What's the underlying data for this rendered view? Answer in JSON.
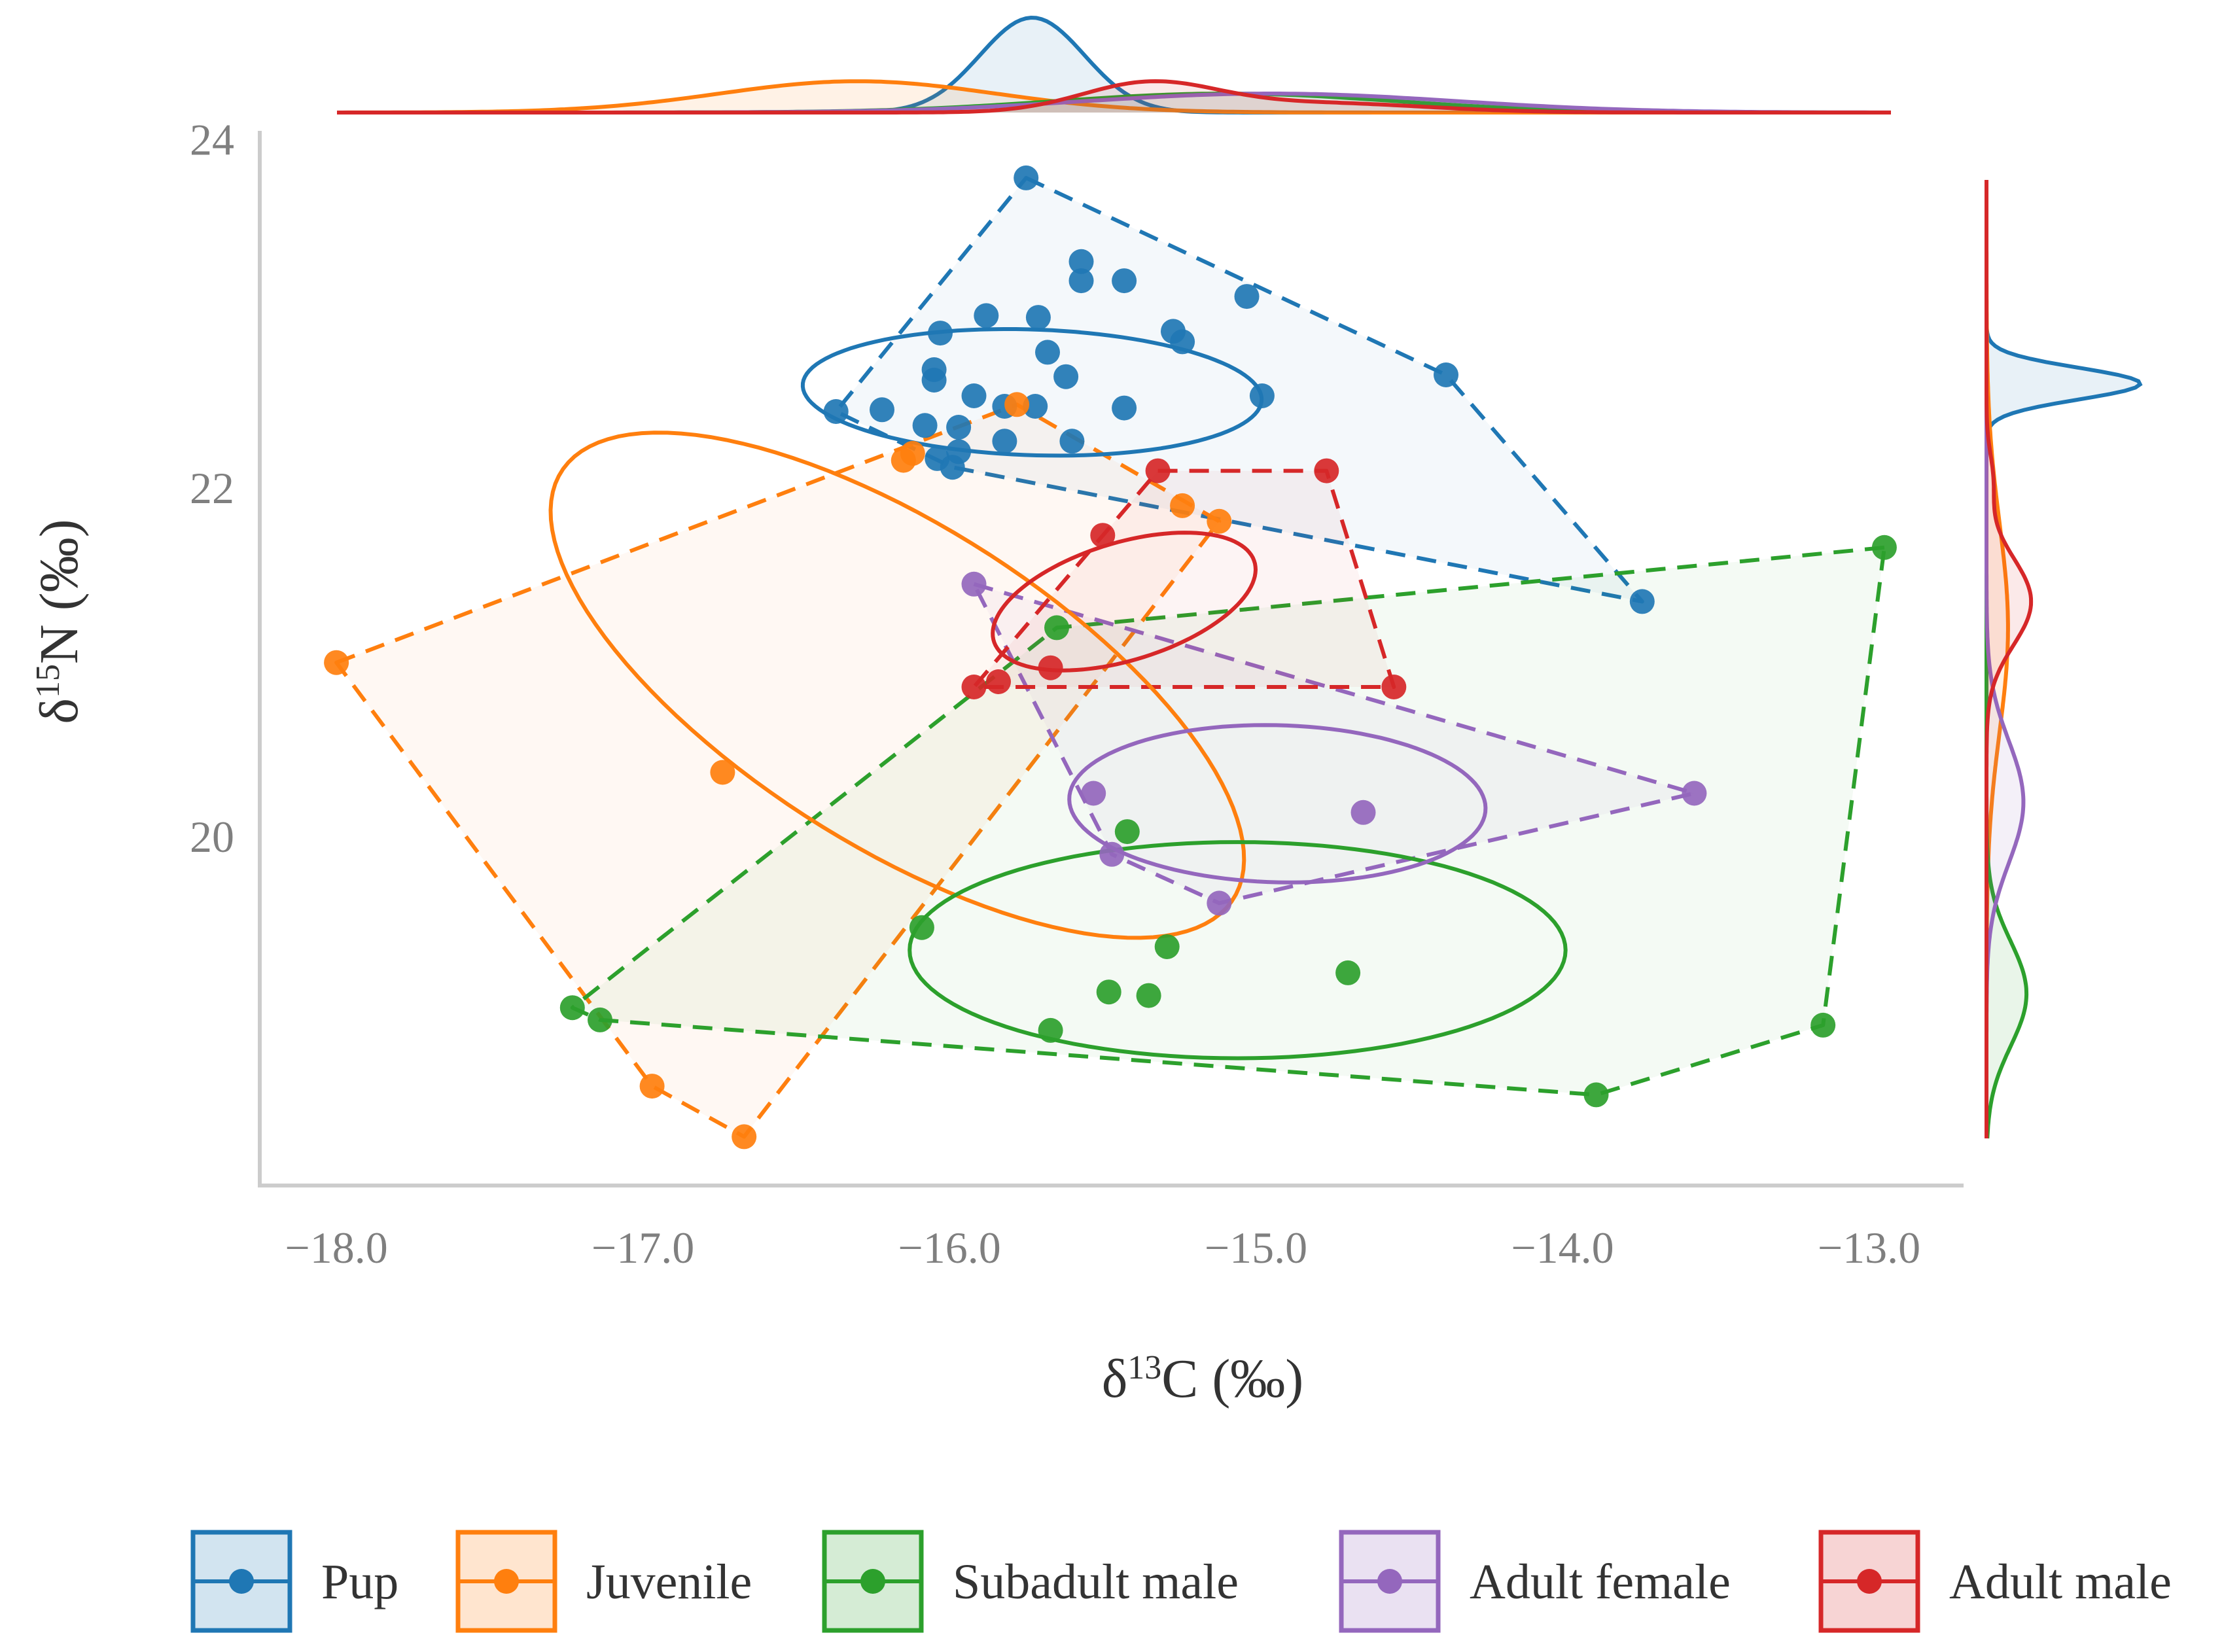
{
  "chart_data": {
    "type": "scatter",
    "title": "",
    "xlabel": {
      "main": "δ",
      "sup": "13",
      "rest": "C (‰)"
    },
    "ylabel": {
      "main": "δ",
      "sup": "15",
      "rest": "N (‰)"
    },
    "xlim": [
      -18.25,
      -12.7
    ],
    "ylim": [
      18.0,
      24.05
    ],
    "xticks": [
      -18.0,
      -17.0,
      -16.0,
      -15.0,
      -14.0,
      -13.0
    ],
    "xtick_labels": [
      "−18.0",
      "−17.0",
      "−16.0",
      "−15.0",
      "−14.0",
      "−13.0"
    ],
    "yticks": [
      20,
      22,
      24
    ],
    "ytick_labels": [
      "20",
      "22",
      "24"
    ],
    "grid": false,
    "legend_position": "bottom",
    "series": [
      {
        "name": "Pup",
        "color": "#1f77b4",
        "points": [
          [
            -15.75,
            23.78
          ],
          [
            -15.57,
            23.3
          ],
          [
            -15.57,
            23.19
          ],
          [
            -15.43,
            23.19
          ],
          [
            -15.03,
            23.1
          ],
          [
            -15.88,
            22.99
          ],
          [
            -15.71,
            22.98
          ],
          [
            -16.03,
            22.89
          ],
          [
            -15.27,
            22.9
          ],
          [
            -15.24,
            22.84
          ],
          [
            -15.68,
            22.78
          ],
          [
            -16.05,
            22.68
          ],
          [
            -16.05,
            22.62
          ],
          [
            -14.38,
            22.65
          ],
          [
            -15.62,
            22.64
          ],
          [
            -15.92,
            22.53
          ],
          [
            -14.98,
            22.53
          ],
          [
            -16.37,
            22.44
          ],
          [
            -16.22,
            22.45
          ],
          [
            -15.82,
            22.47
          ],
          [
            -15.72,
            22.47
          ],
          [
            -15.43,
            22.46
          ],
          [
            -16.08,
            22.36
          ],
          [
            -15.97,
            22.35
          ],
          [
            -15.82,
            22.27
          ],
          [
            -15.6,
            22.27
          ],
          [
            -15.97,
            22.21
          ],
          [
            -16.04,
            22.17
          ],
          [
            -15.99,
            22.12
          ],
          [
            -13.74,
            21.35
          ]
        ],
        "hull": [
          [
            -15.75,
            23.78
          ],
          [
            -14.38,
            22.65
          ],
          [
            -13.74,
            21.35
          ],
          [
            -15.99,
            22.12
          ],
          [
            -16.37,
            22.44
          ],
          [
            -15.75,
            23.78
          ]
        ],
        "ellipse": {
          "cx": -15.73,
          "cy": 22.55,
          "rx": 0.75,
          "ry": 0.36,
          "angle_deg": -4
        }
      },
      {
        "name": "Juvenile",
        "color": "#ff7f0e",
        "points": [
          [
            -15.78,
            22.48
          ],
          [
            -16.12,
            22.2
          ],
          [
            -16.15,
            22.16
          ],
          [
            -15.24,
            21.9
          ],
          [
            -15.12,
            21.81
          ],
          [
            -18.0,
            21.0
          ],
          [
            -16.74,
            20.37
          ],
          [
            -16.97,
            18.57
          ],
          [
            -16.67,
            18.28
          ]
        ],
        "hull": [
          [
            -18.0,
            21.0
          ],
          [
            -15.78,
            22.48
          ],
          [
            -15.12,
            21.81
          ],
          [
            -16.67,
            18.28
          ],
          [
            -16.97,
            18.57
          ],
          [
            -18.0,
            21.0
          ]
        ],
        "ellipse": {
          "cx": -16.17,
          "cy": 20.87,
          "rx": 0.7,
          "ry": 1.7,
          "angle_deg": 35
        }
      },
      {
        "name": "Subadult male",
        "color": "#2ca02c",
        "points": [
          [
            -12.95,
            21.66
          ],
          [
            -15.65,
            21.2
          ],
          [
            -15.42,
            20.03
          ],
          [
            -16.09,
            19.48
          ],
          [
            -15.29,
            19.37
          ],
          [
            -14.7,
            19.22
          ],
          [
            -15.48,
            19.11
          ],
          [
            -15.35,
            19.09
          ],
          [
            -17.23,
            19.02
          ],
          [
            -17.14,
            18.95
          ],
          [
            -15.67,
            18.89
          ],
          [
            -13.15,
            18.92
          ],
          [
            -13.89,
            18.52
          ]
        ],
        "hull": [
          [
            -12.95,
            21.66
          ],
          [
            -15.65,
            21.2
          ],
          [
            -17.23,
            19.02
          ],
          [
            -17.14,
            18.95
          ],
          [
            -13.89,
            18.52
          ],
          [
            -13.15,
            18.92
          ],
          [
            -12.95,
            21.66
          ]
        ],
        "ellipse": {
          "cx": -15.06,
          "cy": 19.35,
          "rx": 1.07,
          "ry": 0.62,
          "angle_deg": 0
        }
      },
      {
        "name": "Adult female",
        "color": "#9467bd",
        "points": [
          [
            -15.92,
            21.45
          ],
          [
            -15.53,
            20.25
          ],
          [
            -13.57,
            20.25
          ],
          [
            -14.65,
            20.14
          ],
          [
            -15.47,
            19.9
          ],
          [
            -15.12,
            19.62
          ]
        ],
        "hull": [
          [
            -15.92,
            21.45
          ],
          [
            -13.57,
            20.25
          ],
          [
            -15.12,
            19.62
          ],
          [
            -15.47,
            19.9
          ],
          [
            -15.92,
            21.45
          ]
        ],
        "ellipse": {
          "cx": -14.93,
          "cy": 20.19,
          "rx": 0.68,
          "ry": 0.45,
          "angle_deg": -4
        }
      },
      {
        "name": "Adult male",
        "color": "#d62728",
        "points": [
          [
            -15.32,
            22.1
          ],
          [
            -14.77,
            22.1
          ],
          [
            -15.5,
            21.73
          ],
          [
            -15.67,
            20.97
          ],
          [
            -15.84,
            20.89
          ],
          [
            -15.92,
            20.86
          ],
          [
            -14.55,
            20.86
          ]
        ],
        "hull": [
          [
            -15.32,
            22.1
          ],
          [
            -14.77,
            22.1
          ],
          [
            -14.55,
            20.86
          ],
          [
            -15.92,
            20.86
          ],
          [
            -15.32,
            22.1
          ]
        ],
        "ellipse": {
          "cx": -15.43,
          "cy": 21.35,
          "rx": 0.5,
          "ry": 0.3,
          "angle_deg": 40
        }
      }
    ],
    "marginal_x_density": [
      {
        "name": "Pup",
        "components": [
          [
            -15.73,
            0.17,
            1.0
          ]
        ]
      },
      {
        "name": "Juvenile",
        "components": [
          [
            -16.3,
            0.45,
            0.33
          ]
        ]
      },
      {
        "name": "Subadult male",
        "components": [
          [
            -15.1,
            0.55,
            0.2
          ]
        ]
      },
      {
        "name": "Adult female",
        "components": [
          [
            -14.95,
            0.6,
            0.2
          ]
        ]
      },
      {
        "name": "Adult male",
        "components": [
          [
            -15.35,
            0.22,
            0.3
          ],
          [
            -14.8,
            0.35,
            0.1
          ]
        ]
      }
    ],
    "marginal_y_density": [
      {
        "name": "Pup",
        "components": [
          [
            22.6,
            0.09,
            1.0
          ]
        ]
      },
      {
        "name": "Juvenile",
        "components": [
          [
            21.2,
            0.6,
            0.14
          ]
        ]
      },
      {
        "name": "Subadult male",
        "components": [
          [
            19.1,
            0.3,
            0.26
          ]
        ]
      },
      {
        "name": "Adult female",
        "components": [
          [
            20.2,
            0.35,
            0.24
          ]
        ]
      },
      {
        "name": "Adult male",
        "components": [
          [
            21.35,
            0.25,
            0.29
          ],
          [
            22.05,
            0.15,
            0.04
          ]
        ]
      }
    ]
  }
}
